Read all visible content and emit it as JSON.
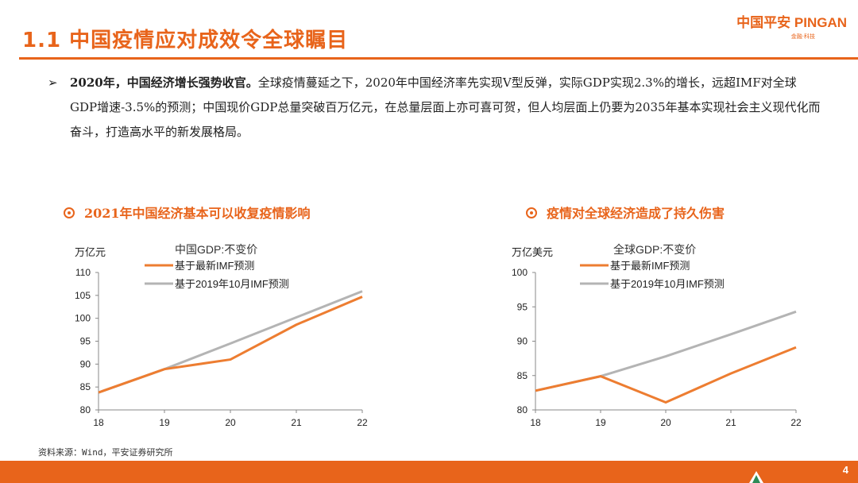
{
  "header": {
    "title": "1.1 中国疫情应对成效令全球瞩目",
    "logo_main": "中国平安 PINGAN",
    "logo_sub": "金融·科技"
  },
  "summary": {
    "bold": "2020年，中国经济增长强势收官。",
    "text": "全球疫情蔓延之下，2020年中国经济率先实现V型反弹，实际GDP实现2.3%的增长，远超IMF对全球GDP增速-3.5%的预测；中国现价GDP总量突破百万亿元，在总量层面上亦可喜可贺，但人均层面上仍要为2035年基本实现社会主义现代化而奋斗，打造高水平的新发展格局。"
  },
  "sections": [
    {
      "title": "2021年中国经济基本可以收复疫情影响"
    },
    {
      "title": "疫情对全球经济造成了持久伤害"
    }
  ],
  "chart_data": [
    {
      "type": "line",
      "title": "中国GDP:不变价",
      "ylabel": "万亿元",
      "x": [
        "18",
        "19",
        "20",
        "21",
        "22"
      ],
      "ylim": [
        80,
        110
      ],
      "yticks": [
        80,
        85,
        90,
        95,
        100,
        105,
        110
      ],
      "grid": false,
      "legend_position": "top",
      "series": [
        {
          "name": "基于最新IMF预测",
          "color": "#ed7d31",
          "values": [
            83.8,
            88.9,
            91.0,
            98.6,
            104.7
          ]
        },
        {
          "name": "基于2019年10月IMF预测",
          "color": "#b4b4b4",
          "values": [
            83.8,
            88.9,
            94.5,
            100.2,
            105.9
          ]
        }
      ]
    },
    {
      "type": "line",
      "title": "全球GDP:不变价",
      "ylabel": "万亿美元",
      "x": [
        "18",
        "19",
        "20",
        "21",
        "22"
      ],
      "ylim": [
        80,
        100
      ],
      "yticks": [
        80,
        85,
        90,
        95,
        100
      ],
      "grid": false,
      "legend_position": "top",
      "series": [
        {
          "name": "基于最新IMF预测",
          "color": "#ed7d31",
          "values": [
            82.8,
            84.9,
            81.1,
            85.3,
            89.1
          ]
        },
        {
          "name": "基于2019年10月IMF预测",
          "color": "#b4b4b4",
          "values": [
            82.8,
            84.9,
            87.8,
            91.0,
            94.3
          ]
        }
      ]
    }
  ],
  "footer": {
    "source": "资料来源：Wind，平安证券研究所",
    "page_number": "4"
  }
}
